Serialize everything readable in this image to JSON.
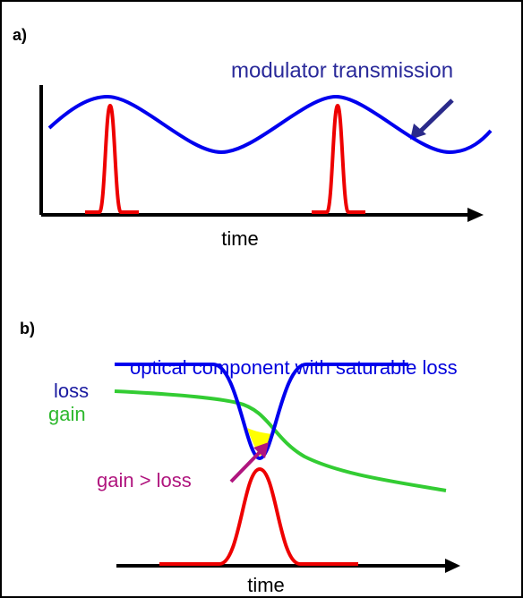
{
  "panel_a": {
    "label": "a)",
    "curve_label": "modulator transmission",
    "axis_label": "time"
  },
  "panel_b": {
    "label": "b)",
    "title": "optical component with saturable loss",
    "loss_label": "loss",
    "gain_label": "gain",
    "annotation": "gain > loss",
    "axis_label": "time"
  }
}
